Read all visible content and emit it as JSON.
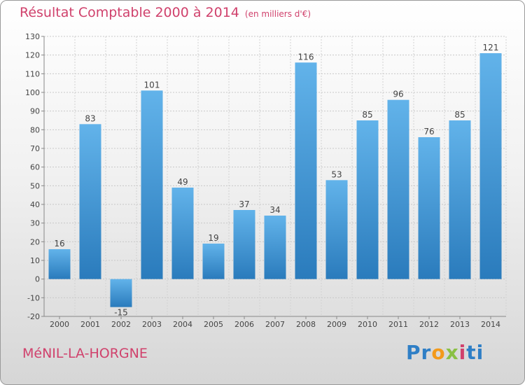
{
  "title": "Résultat Comptable 2000 à 2014",
  "subtitle": "(en milliers d'€)",
  "commune": "MéNIL-LA-HORGNE",
  "logo": {
    "letters": [
      "P",
      "r",
      "o",
      "x",
      "i",
      "t",
      "i"
    ],
    "colors": [
      "#2f7fc6",
      "#2f7fc6",
      "#f39a1b",
      "#8ac043",
      "#d0416c",
      "#2f7fc6",
      "#2f7fc6"
    ]
  },
  "colors": {
    "bar_top": "#62b3ea",
    "bar_bottom": "#2a7bbc",
    "accent": "#d0416c"
  },
  "chart_data": {
    "type": "bar",
    "title": "Résultat Comptable 2000 à 2014 (en milliers d'€)",
    "categories": [
      "2000",
      "2001",
      "2002",
      "2003",
      "2004",
      "2005",
      "2006",
      "2007",
      "2008",
      "2009",
      "2010",
      "2011",
      "2012",
      "2013",
      "2014"
    ],
    "values": [
      16,
      83,
      -15,
      101,
      49,
      19,
      37,
      34,
      116,
      53,
      85,
      96,
      76,
      85,
      121
    ],
    "ylim": [
      -20,
      130
    ],
    "yticks": [
      -20,
      -10,
      0,
      10,
      20,
      30,
      40,
      50,
      60,
      70,
      80,
      90,
      100,
      110,
      120,
      130
    ],
    "grid": true,
    "xlabel": "",
    "ylabel": ""
  }
}
